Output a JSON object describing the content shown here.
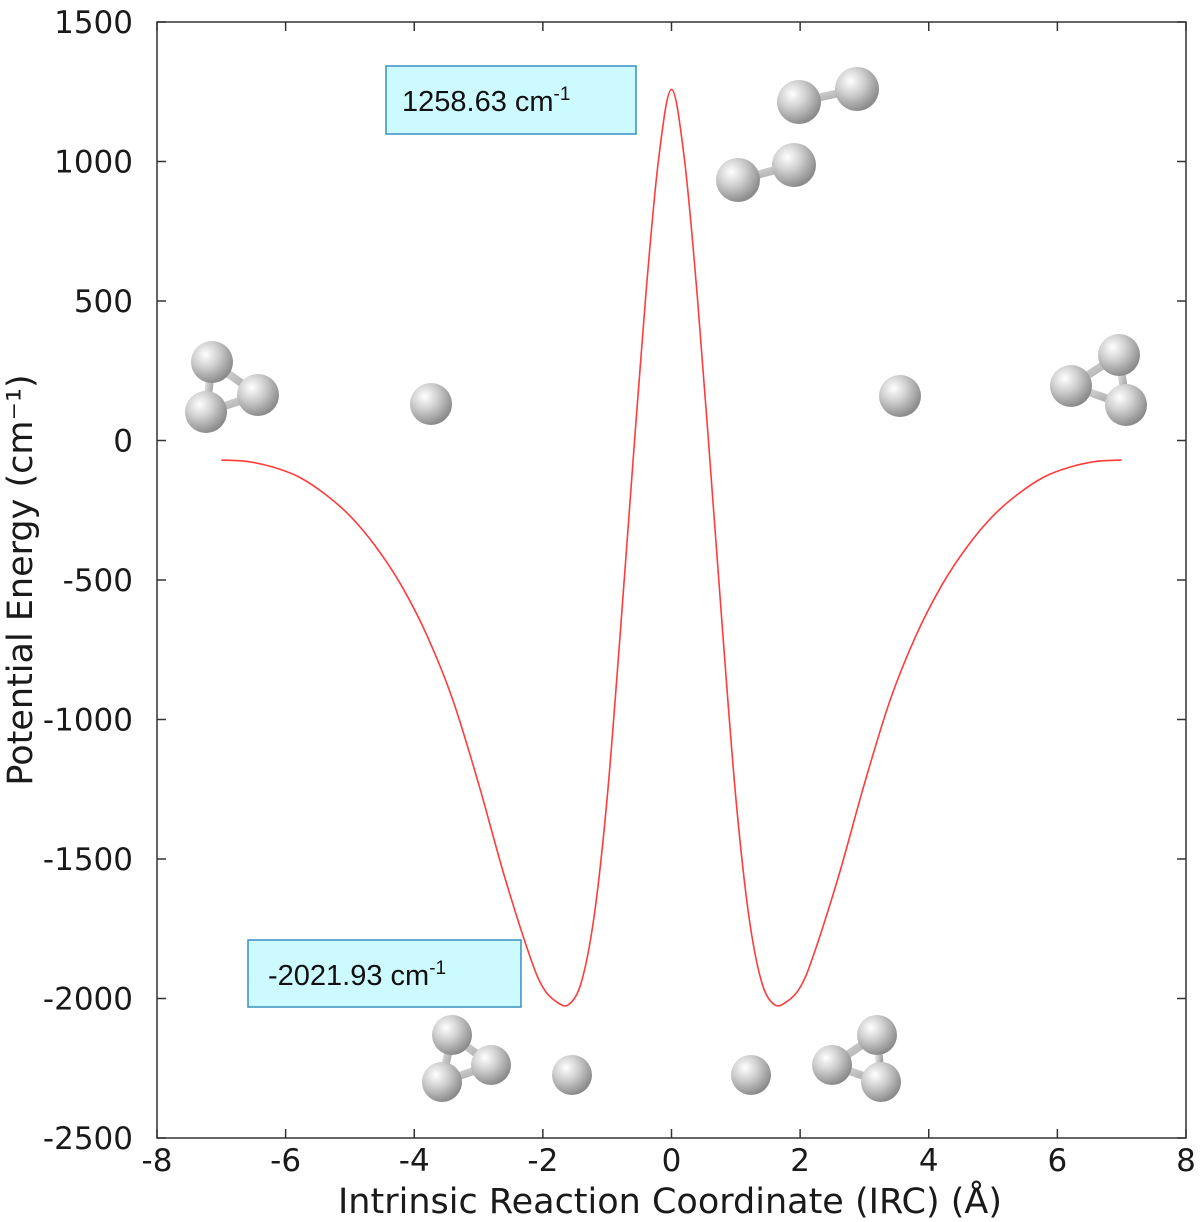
{
  "chart_data": {
    "type": "line",
    "title": "",
    "xlabel": "Intrinsic Reaction Coordinate (IRC) (Å)",
    "ylabel": "Potential Energy (cm⁻¹)",
    "xlim": [
      -8,
      8
    ],
    "ylim": [
      -2500,
      1500
    ],
    "xticks": [
      -8,
      -6,
      -4,
      -2,
      0,
      2,
      4,
      6,
      8
    ],
    "yticks": [
      -2500,
      -2000,
      -1500,
      -1000,
      -500,
      0,
      500,
      1000,
      1500
    ],
    "xtick_labels": [
      "-8",
      "-6",
      "-4",
      "-2",
      "0",
      "2",
      "4",
      "6",
      "8"
    ],
    "ytick_labels": [
      "-2500",
      "-2000",
      "-1500",
      "-1000",
      "-500",
      "0",
      "500",
      "1000",
      "1500"
    ],
    "grid": false,
    "line_color": "#ff3b3b",
    "annotation_bg": "#ccfaff",
    "annotation_border": "#3a8fbf",
    "series": [
      {
        "x": [
          -7.0,
          -6.6,
          -6.2,
          -5.8,
          -5.4,
          -5.0,
          -4.6,
          -4.2,
          -3.8,
          -3.4,
          -3.0,
          -2.6,
          -2.2,
          -2.0,
          -1.8,
          -1.6,
          -1.4,
          -1.2,
          -1.0,
          -0.8,
          -0.6,
          -0.4,
          -0.2,
          0.0,
          0.2,
          0.4,
          0.6,
          0.8,
          1.0,
          1.2,
          1.4,
          1.6,
          1.8,
          2.0,
          2.2,
          2.6,
          3.0,
          3.4,
          3.8,
          4.2,
          4.6,
          5.0,
          5.4,
          5.8,
          6.2,
          6.6,
          7.0
        ],
        "y": [
          -70,
          -75,
          -95,
          -130,
          -190,
          -270,
          -380,
          -520,
          -700,
          -930,
          -1230,
          -1560,
          -1850,
          -1960,
          -2010,
          -2021.93,
          -1940,
          -1700,
          -1280,
          -700,
          -80,
          520,
          1010,
          1258.63,
          1010,
          520,
          -80,
          -700,
          -1280,
          -1700,
          -1940,
          -2021.93,
          -2010,
          -1960,
          -1850,
          -1560,
          -1230,
          -930,
          -700,
          -520,
          -380,
          -270,
          -190,
          -130,
          -95,
          -75,
          -70
        ]
      }
    ],
    "annotations": [
      {
        "name": "barrier-label",
        "value": "1258.63 cm",
        "sup": "-1",
        "x": 0.0,
        "y": 1258.63
      },
      {
        "name": "well-label",
        "value": "-2021.93 cm",
        "sup": "-1",
        "x": -1.6,
        "y": -2021.93
      }
    ]
  }
}
